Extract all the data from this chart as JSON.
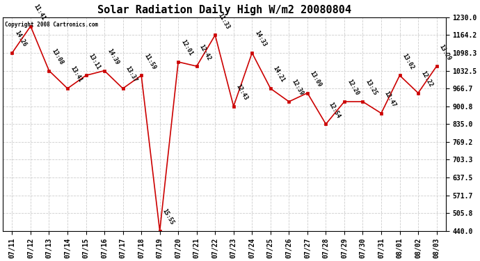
{
  "title": "Solar Radiation Daily High W/m2 20080804",
  "copyright_text": "Copyright 2008 Cartronics.com",
  "dates": [
    "07/11",
    "07/12",
    "07/13",
    "07/14",
    "07/15",
    "07/16",
    "07/17",
    "07/18",
    "07/19",
    "07/20",
    "07/21",
    "07/22",
    "07/23",
    "07/24",
    "07/25",
    "07/26",
    "07/27",
    "07/28",
    "07/29",
    "07/30",
    "07/31",
    "08/01",
    "08/02",
    "08/03"
  ],
  "values": [
    1098.3,
    1197.0,
    1032.5,
    966.7,
    1015.0,
    1032.5,
    966.7,
    1015.0,
    440.0,
    1065.0,
    1049.0,
    1164.2,
    900.8,
    1098.3,
    966.7,
    918.0,
    950.0,
    835.0,
    918.0,
    918.0,
    875.0,
    1015.0,
    950.0,
    1049.0
  ],
  "time_labels": [
    "14:26",
    "11:41",
    "13:08",
    "13:41",
    "13:11",
    "14:39",
    "13:37",
    "11:59",
    "15:55",
    "12:01",
    "12:42",
    "11:33",
    "12:43",
    "14:33",
    "14:21",
    "12:39",
    "13:09",
    "12:54",
    "12:20",
    "13:25",
    "12:47",
    "13:02",
    "12:22",
    "13:29"
  ],
  "line_color": "#cc0000",
  "marker_color": "#cc0000",
  "bg_color": "#ffffff",
  "grid_color": "#cccccc",
  "ylim_min": 440.0,
  "ylim_max": 1230.0,
  "yticks": [
    440.0,
    505.8,
    571.7,
    637.5,
    703.3,
    769.2,
    835.0,
    900.8,
    966.7,
    1032.5,
    1098.3,
    1164.2,
    1230.0
  ],
  "title_fontsize": 11,
  "label_fontsize": 6,
  "tick_fontsize": 7
}
